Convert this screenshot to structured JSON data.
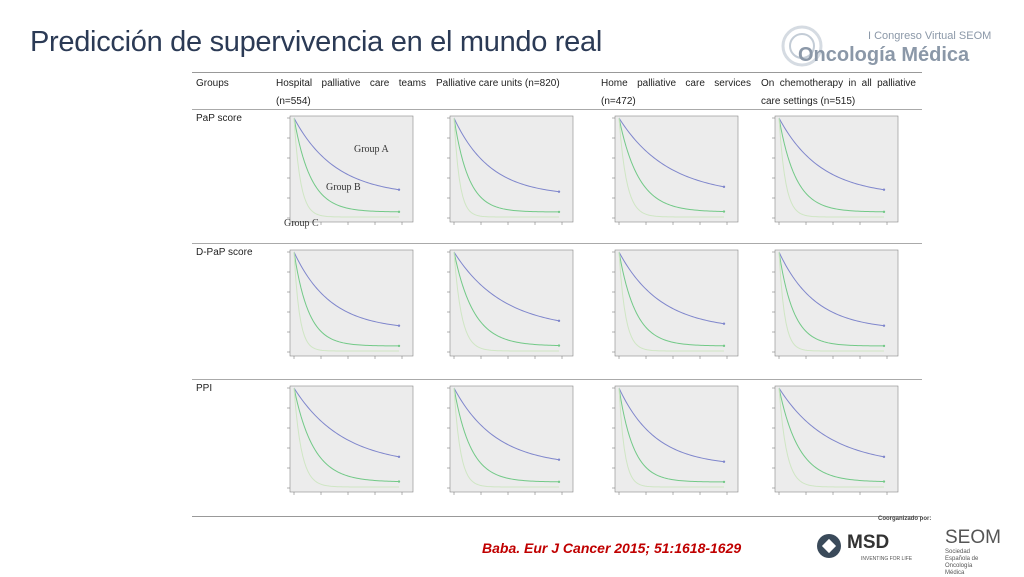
{
  "header": {
    "title": "Predicción de supervivencia en el mundo real",
    "congress": "I Congreso Virtual SEOM",
    "brand": "Oncología Médica"
  },
  "table": {
    "columns": [
      "Groups",
      "Hospital palliative care teams (n=554)",
      "Palliative care units (n=820)",
      "Home palliative care services (n=472)",
      "On chemotherapy in all palliative care settings (n=515)"
    ],
    "rows": [
      "PaP score",
      "D-PaP score",
      "PPI"
    ],
    "group_labels": [
      "Group A",
      "Group B",
      "Group C"
    ]
  },
  "footer": {
    "citation": "Baba. Eur J Cancer 2015; 51:1618-1629",
    "coorganized": "Coorganizado por:",
    "msd": "MSD",
    "msd_tagline": "INVENTING FOR LIFE",
    "seom": "SEOM",
    "seom_full": "Sociedad Española de Oncología Médica"
  }
}
